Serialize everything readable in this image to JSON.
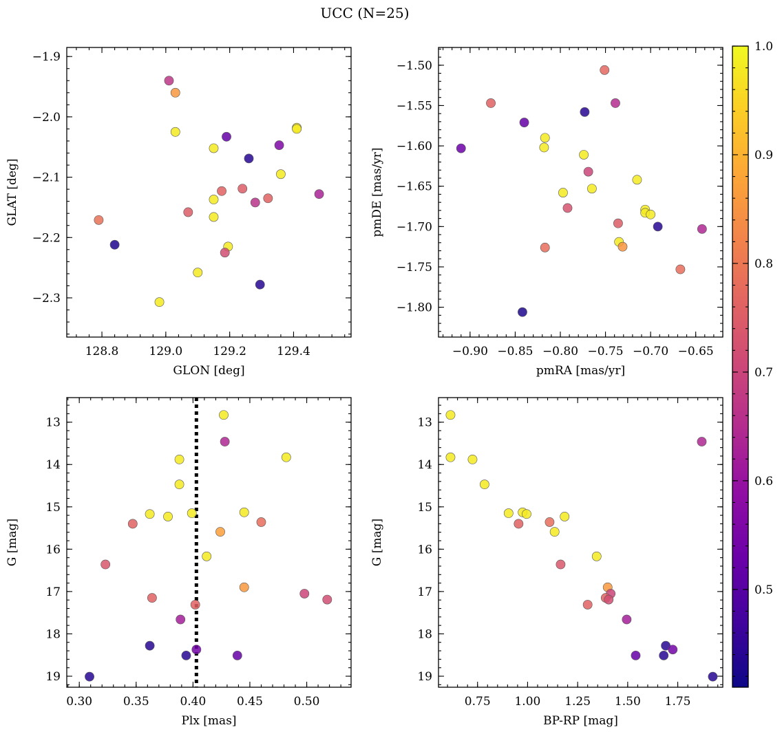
{
  "figure": {
    "title": "UCC (N=25)"
  },
  "colormap": {
    "name": "plasma",
    "min": 0.41,
    "max": 1.0,
    "ticks": [
      0.5,
      0.6,
      0.7,
      0.8,
      0.9,
      1.0
    ],
    "tick_labels": [
      "0.5",
      "0.6",
      "0.7",
      "0.8",
      "0.9",
      "1.0"
    ]
  },
  "chart_data": [
    {
      "type": "scatter",
      "id": "glon-glat",
      "xlabel": "GLON [deg]",
      "ylabel": "GLAT [deg]",
      "xlim": [
        128.69,
        129.58
      ],
      "ylim": [
        -2.365,
        -1.885
      ],
      "y_inverted": false,
      "xticks": [
        128.8,
        129.0,
        129.2,
        129.4
      ],
      "xtick_labels": [
        "128.8",
        "129.0",
        "129.2",
        "129.4"
      ],
      "yticks": [
        -1.9,
        -2.0,
        -2.1,
        -2.2,
        -2.3
      ],
      "ytick_labels": [
        "−1.9",
        "−2.0",
        "−2.1",
        "−2.2",
        "−2.3"
      ],
      "points": [
        {
          "x": 129.01,
          "y": -1.94,
          "c": 0.67
        },
        {
          "x": 129.03,
          "y": -1.96,
          "c": 0.86
        },
        {
          "x": 129.03,
          "y": -2.025,
          "c": 0.98
        },
        {
          "x": 128.79,
          "y": -2.171,
          "c": 0.79
        },
        {
          "x": 128.84,
          "y": -2.212,
          "c": 0.43
        },
        {
          "x": 128.98,
          "y": -2.307,
          "c": 0.98
        },
        {
          "x": 129.19,
          "y": -2.033,
          "c": 0.52
        },
        {
          "x": 129.26,
          "y": -2.069,
          "c": 0.44
        },
        {
          "x": 129.41,
          "y": -2.018,
          "c": 0.98
        },
        {
          "x": 129.41,
          "y": -2.02,
          "c": 0.98
        },
        {
          "x": 129.15,
          "y": -2.052,
          "c": 0.98
        },
        {
          "x": 129.355,
          "y": -2.047,
          "c": 0.56
        },
        {
          "x": 129.36,
          "y": -2.095,
          "c": 0.98
        },
        {
          "x": 129.175,
          "y": -2.123,
          "c": 0.76
        },
        {
          "x": 129.24,
          "y": -2.119,
          "c": 0.75
        },
        {
          "x": 129.32,
          "y": -2.135,
          "c": 0.76
        },
        {
          "x": 129.28,
          "y": -2.142,
          "c": 0.66
        },
        {
          "x": 129.48,
          "y": -2.128,
          "c": 0.63
        },
        {
          "x": 129.07,
          "y": -2.158,
          "c": 0.75
        },
        {
          "x": 129.15,
          "y": -2.137,
          "c": 0.98
        },
        {
          "x": 129.15,
          "y": -2.166,
          "c": 0.98
        },
        {
          "x": 129.195,
          "y": -2.215,
          "c": 0.98
        },
        {
          "x": 129.185,
          "y": -2.225,
          "c": 0.72
        },
        {
          "x": 129.1,
          "y": -2.258,
          "c": 0.98
        },
        {
          "x": 129.295,
          "y": -2.278,
          "c": 0.44
        }
      ]
    },
    {
      "type": "scatter",
      "id": "pmra-pmde",
      "xlabel": "pmRA [mas/yr]",
      "ylabel": "pmDE [mas/yr]",
      "xlim": [
        -0.935,
        -0.62
      ],
      "ylim": [
        -1.837,
        -1.478
      ],
      "y_inverted": false,
      "xticks": [
        -0.9,
        -0.85,
        -0.8,
        -0.75,
        -0.7,
        -0.65
      ],
      "xtick_labels": [
        "−0.90",
        "−0.85",
        "−0.80",
        "−0.75",
        "−0.70",
        "−0.65"
      ],
      "yticks": [
        -1.5,
        -1.55,
        -1.6,
        -1.65,
        -1.7,
        -1.75,
        -1.8
      ],
      "ytick_labels": [
        "−1.50",
        "−1.55",
        "−1.60",
        "−1.65",
        "−1.70",
        "−1.75",
        "−1.80"
      ],
      "points": [
        {
          "x": -0.751,
          "y": -1.506,
          "c": 0.77
        },
        {
          "x": -0.877,
          "y": -1.547,
          "c": 0.76
        },
        {
          "x": -0.739,
          "y": -1.547,
          "c": 0.65
        },
        {
          "x": -0.773,
          "y": -1.558,
          "c": 0.44
        },
        {
          "x": -0.84,
          "y": -1.571,
          "c": 0.52
        },
        {
          "x": -0.817,
          "y": -1.59,
          "c": 0.98
        },
        {
          "x": -0.818,
          "y": -1.602,
          "c": 0.98
        },
        {
          "x": -0.91,
          "y": -1.603,
          "c": 0.53
        },
        {
          "x": -0.774,
          "y": -1.611,
          "c": 0.98
        },
        {
          "x": -0.769,
          "y": -1.632,
          "c": 0.7
        },
        {
          "x": -0.797,
          "y": -1.658,
          "c": 0.98
        },
        {
          "x": -0.765,
          "y": -1.653,
          "c": 0.98
        },
        {
          "x": -0.715,
          "y": -1.642,
          "c": 0.98
        },
        {
          "x": -0.792,
          "y": -1.677,
          "c": 0.73
        },
        {
          "x": -0.706,
          "y": -1.679,
          "c": 0.98
        },
        {
          "x": -0.706,
          "y": -1.683,
          "c": 0.98
        },
        {
          "x": -0.7,
          "y": -1.685,
          "c": 0.98
        },
        {
          "x": -0.736,
          "y": -1.696,
          "c": 0.75
        },
        {
          "x": -0.692,
          "y": -1.7,
          "c": 0.44
        },
        {
          "x": -0.643,
          "y": -1.703,
          "c": 0.64
        },
        {
          "x": -0.735,
          "y": -1.719,
          "c": 0.98
        },
        {
          "x": -0.731,
          "y": -1.725,
          "c": 0.85
        },
        {
          "x": -0.817,
          "y": -1.726,
          "c": 0.78
        },
        {
          "x": -0.667,
          "y": -1.753,
          "c": 0.78
        },
        {
          "x": -0.842,
          "y": -1.806,
          "c": 0.43
        }
      ]
    },
    {
      "type": "scatter",
      "id": "plx-g",
      "xlabel": "Plx [mas]",
      "ylabel": "G [mag]",
      "xlim": [
        0.289,
        0.539
      ],
      "ylim": [
        12.42,
        19.26
      ],
      "y_inverted": true,
      "xticks": [
        0.3,
        0.35,
        0.4,
        0.45,
        0.5
      ],
      "xtick_labels": [
        "0.30",
        "0.35",
        "0.40",
        "0.45",
        "0.50"
      ],
      "yticks": [
        13,
        14,
        15,
        16,
        17,
        18,
        19
      ],
      "ytick_labels": [
        "13",
        "14",
        "15",
        "16",
        "17",
        "18",
        "19"
      ],
      "vline": {
        "x": 0.403,
        "style": "dotted"
      },
      "points": [
        {
          "x": 0.427,
          "y": 12.83,
          "c": 0.98
        },
        {
          "x": 0.428,
          "y": 13.46,
          "c": 0.64
        },
        {
          "x": 0.388,
          "y": 13.88,
          "c": 0.98
        },
        {
          "x": 0.482,
          "y": 13.83,
          "c": 0.98
        },
        {
          "x": 0.388,
          "y": 14.47,
          "c": 0.98
        },
        {
          "x": 0.362,
          "y": 15.17,
          "c": 0.98
        },
        {
          "x": 0.378,
          "y": 15.23,
          "c": 0.98
        },
        {
          "x": 0.399,
          "y": 15.15,
          "c": 0.98
        },
        {
          "x": 0.445,
          "y": 15.13,
          "c": 0.98
        },
        {
          "x": 0.347,
          "y": 15.4,
          "c": 0.76
        },
        {
          "x": 0.46,
          "y": 15.36,
          "c": 0.78
        },
        {
          "x": 0.424,
          "y": 15.59,
          "c": 0.87
        },
        {
          "x": 0.412,
          "y": 16.17,
          "c": 0.98
        },
        {
          "x": 0.323,
          "y": 16.36,
          "c": 0.74
        },
        {
          "x": 0.445,
          "y": 16.9,
          "c": 0.86
        },
        {
          "x": 0.498,
          "y": 17.05,
          "c": 0.7
        },
        {
          "x": 0.364,
          "y": 17.15,
          "c": 0.76
        },
        {
          "x": 0.518,
          "y": 17.19,
          "c": 0.72
        },
        {
          "x": 0.402,
          "y": 17.31,
          "c": 0.76
        },
        {
          "x": 0.389,
          "y": 17.66,
          "c": 0.62
        },
        {
          "x": 0.362,
          "y": 18.28,
          "c": 0.44
        },
        {
          "x": 0.403,
          "y": 18.37,
          "c": 0.54
        },
        {
          "x": 0.394,
          "y": 18.51,
          "c": 0.44
        },
        {
          "x": 0.439,
          "y": 18.51,
          "c": 0.52
        },
        {
          "x": 0.309,
          "y": 19.01,
          "c": 0.44
        }
      ]
    },
    {
      "type": "scatter",
      "id": "bprp-g",
      "xlabel": "BP-RP [mag]",
      "ylabel": "G [mag]",
      "xlim": [
        0.555,
        1.975
      ],
      "ylim": [
        12.42,
        19.26
      ],
      "y_inverted": true,
      "xticks": [
        0.75,
        1.0,
        1.25,
        1.5,
        1.75
      ],
      "xtick_labels": [
        "0.75",
        "1.00",
        "1.25",
        "1.50",
        "1.75"
      ],
      "yticks": [
        13,
        14,
        15,
        16,
        17,
        18,
        19
      ],
      "ytick_labels": [
        "13",
        "14",
        "15",
        "16",
        "17",
        "18",
        "19"
      ],
      "points": [
        {
          "x": 0.615,
          "y": 12.83,
          "c": 0.98
        },
        {
          "x": 1.87,
          "y": 13.46,
          "c": 0.64
        },
        {
          "x": 0.615,
          "y": 13.83,
          "c": 0.98
        },
        {
          "x": 0.725,
          "y": 13.88,
          "c": 0.98
        },
        {
          "x": 0.785,
          "y": 14.47,
          "c": 0.98
        },
        {
          "x": 0.905,
          "y": 15.15,
          "c": 0.98
        },
        {
          "x": 0.975,
          "y": 15.13,
          "c": 0.98
        },
        {
          "x": 0.995,
          "y": 15.17,
          "c": 0.98
        },
        {
          "x": 1.185,
          "y": 15.23,
          "c": 0.98
        },
        {
          "x": 0.955,
          "y": 15.4,
          "c": 0.76
        },
        {
          "x": 1.11,
          "y": 15.36,
          "c": 0.78
        },
        {
          "x": 1.135,
          "y": 15.59,
          "c": 0.98
        },
        {
          "x": 1.345,
          "y": 16.17,
          "c": 0.98
        },
        {
          "x": 1.165,
          "y": 16.36,
          "c": 0.74
        },
        {
          "x": 1.4,
          "y": 16.9,
          "c": 0.86
        },
        {
          "x": 1.415,
          "y": 17.05,
          "c": 0.7
        },
        {
          "x": 1.39,
          "y": 17.15,
          "c": 0.76
        },
        {
          "x": 1.405,
          "y": 17.19,
          "c": 0.72
        },
        {
          "x": 1.3,
          "y": 17.31,
          "c": 0.76
        },
        {
          "x": 1.495,
          "y": 17.66,
          "c": 0.62
        },
        {
          "x": 1.69,
          "y": 18.28,
          "c": 0.44
        },
        {
          "x": 1.725,
          "y": 18.37,
          "c": 0.54
        },
        {
          "x": 1.54,
          "y": 18.51,
          "c": 0.52
        },
        {
          "x": 1.68,
          "y": 18.51,
          "c": 0.44
        },
        {
          "x": 1.925,
          "y": 19.01,
          "c": 0.44
        }
      ]
    }
  ]
}
